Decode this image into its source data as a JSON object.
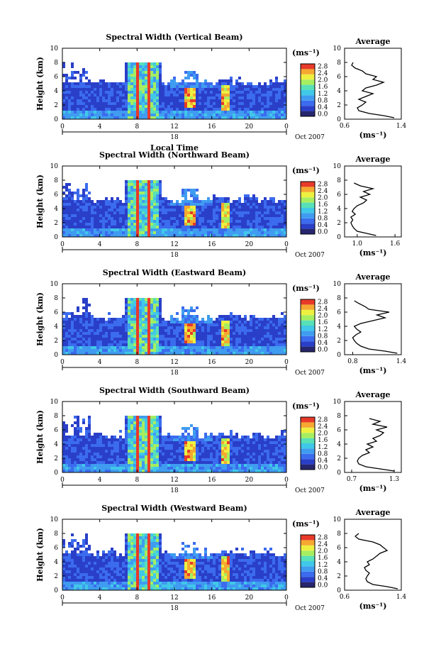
{
  "chart_data": [
    {
      "type": "heatmap",
      "title": "Spectral Width (Vertical Beam)",
      "ylabel": "Height (km)",
      "xlabel": "Local Time",
      "x_ticks": [
        "0",
        "4",
        "8",
        "12",
        "16",
        "20",
        "0"
      ],
      "day_label": "18",
      "date_label": "Oct 2007",
      "xlim": [
        0,
        24
      ],
      "ylim": [
        0,
        10
      ],
      "y_ticks": [
        "0",
        "2",
        "4",
        "6",
        "8",
        "10"
      ],
      "colorbar": {
        "unit": "(ms⁻¹)",
        "ticks": [
          "0.0",
          "0.4",
          "0.8",
          "1.2",
          "1.6",
          "2.0",
          "2.4",
          "2.8"
        ],
        "range": [
          0.0,
          2.8
        ]
      },
      "average": {
        "title": "Average",
        "xlabel": "(ms⁻¹)",
        "x_ticks": [
          "0.6",
          "1.4"
        ],
        "xlim": [
          0.6,
          1.4
        ],
        "heights": [
          0.2,
          0.5,
          0.8,
          1.2,
          1.6,
          2.0,
          2.4,
          2.8,
          3.2,
          3.6,
          4.0,
          4.4,
          4.8,
          5.2,
          5.6,
          6.0,
          6.4,
          6.8,
          7.2,
          7.6,
          8.0
        ],
        "values": [
          1.3,
          1.15,
          0.95,
          0.8,
          0.78,
          0.85,
          0.9,
          0.8,
          0.9,
          1.0,
          0.85,
          0.9,
          1.05,
          1.15,
          1.0,
          1.05,
          0.9,
          0.85,
          0.75,
          0.7,
          0.72
        ]
      }
    },
    {
      "type": "heatmap",
      "title": "Spectral Width (Northward Beam)",
      "ylabel": "Height (km)",
      "x_ticks": [
        "0",
        "4",
        "8",
        "12",
        "16",
        "20",
        "0"
      ],
      "day_label": "18",
      "date_label": "Oct 2007",
      "xlim": [
        0,
        24
      ],
      "ylim": [
        0,
        10
      ],
      "y_ticks": [
        "0",
        "2",
        "4",
        "6",
        "8",
        "10"
      ],
      "colorbar": {
        "unit": "(ms⁻¹)",
        "ticks": [
          "0.0",
          "0.4",
          "0.8",
          "1.2",
          "1.6",
          "2.0",
          "2.4",
          "2.8"
        ],
        "range": [
          0.0,
          2.8
        ]
      },
      "average": {
        "title": "Average",
        "xlabel": "(ms⁻¹)",
        "x_ticks": [
          "1.0",
          "1.6"
        ],
        "xlim": [
          0.8,
          1.7
        ],
        "heights": [
          0.2,
          0.5,
          0.8,
          1.2,
          1.6,
          2.0,
          2.4,
          2.8,
          3.2,
          3.6,
          4.0,
          4.4,
          4.8,
          5.2,
          5.6,
          6.0,
          6.4,
          6.8,
          7.2,
          7.6
        ],
        "values": [
          1.3,
          1.15,
          1.0,
          0.95,
          0.92,
          0.9,
          0.93,
          0.9,
          0.97,
          0.92,
          0.95,
          1.0,
          1.1,
          1.15,
          1.05,
          1.2,
          1.1,
          1.25,
          1.05,
          0.95
        ]
      }
    },
    {
      "type": "heatmap",
      "title": "Spectral Width (Eastward Beam)",
      "ylabel": "Height (km)",
      "x_ticks": [
        "0",
        "4",
        "8",
        "12",
        "16",
        "20",
        "0"
      ],
      "day_label": "18",
      "date_label": "Oct 2007",
      "xlim": [
        0,
        24
      ],
      "ylim": [
        0,
        10
      ],
      "y_ticks": [
        "0",
        "2",
        "4",
        "6",
        "8",
        "10"
      ],
      "colorbar": {
        "unit": "(ms⁻¹)",
        "ticks": [
          "0.0",
          "0.4",
          "0.8",
          "1.2",
          "1.6",
          "2.0",
          "2.4",
          "2.8"
        ],
        "range": [
          0.0,
          2.8
        ]
      },
      "average": {
        "title": "Average",
        "xlabel": "(ms⁻¹)",
        "x_ticks": [
          "0.8",
          "1.4"
        ],
        "xlim": [
          0.7,
          1.4
        ],
        "heights": [
          0.2,
          0.5,
          0.8,
          1.2,
          1.6,
          2.0,
          2.4,
          2.8,
          3.2,
          3.6,
          4.0,
          4.4,
          4.8,
          5.2,
          5.6,
          6.0,
          6.4,
          6.8,
          7.2,
          7.6
        ],
        "values": [
          1.35,
          1.2,
          1.0,
          0.9,
          0.85,
          0.82,
          0.8,
          0.84,
          0.9,
          0.85,
          0.82,
          0.9,
          1.05,
          1.2,
          1.1,
          1.25,
          1.0,
          0.95,
          0.88,
          0.82
        ]
      }
    },
    {
      "type": "heatmap",
      "title": "Spectral Width (Southward Beam)",
      "ylabel": "Height (km)",
      "x_ticks": [
        "0",
        "4",
        "8",
        "12",
        "16",
        "20",
        "0"
      ],
      "day_label": "18",
      "date_label": "Oct 2007",
      "xlim": [
        0,
        24
      ],
      "ylim": [
        0,
        10
      ],
      "y_ticks": [
        "0",
        "2",
        "4",
        "6",
        "8",
        "10"
      ],
      "colorbar": {
        "unit": "(ms⁻¹)",
        "ticks": [
          "0.0",
          "0.4",
          "0.8",
          "1.2",
          "1.6",
          "2.0",
          "2.4",
          "2.8"
        ],
        "range": [
          0.0,
          2.8
        ]
      },
      "average": {
        "title": "Average",
        "xlabel": "(ms⁻¹)",
        "x_ticks": [
          "0.7",
          "1.3"
        ],
        "xlim": [
          0.6,
          1.4
        ],
        "heights": [
          0.2,
          0.5,
          0.8,
          1.2,
          1.6,
          2.0,
          2.4,
          2.8,
          3.2,
          3.6,
          4.0,
          4.4,
          4.8,
          5.2,
          5.6,
          6.0,
          6.4,
          6.8,
          7.2,
          7.6
        ],
        "values": [
          1.3,
          1.1,
          0.9,
          0.8,
          0.78,
          0.8,
          0.85,
          0.95,
          0.9,
          1.0,
          0.92,
          1.05,
          1.0,
          1.1,
          1.15,
          1.05,
          1.2,
          1.0,
          1.1,
          0.95
        ]
      }
    },
    {
      "type": "heatmap",
      "title": "Spectral Width (Westward Beam)",
      "ylabel": "Height (km)",
      "x_ticks": [
        "0",
        "4",
        "8",
        "12",
        "16",
        "20",
        "0"
      ],
      "day_label": "18",
      "date_label": "Oct 2007",
      "xlim": [
        0,
        24
      ],
      "ylim": [
        0,
        10
      ],
      "y_ticks": [
        "0",
        "2",
        "4",
        "6",
        "8",
        "10"
      ],
      "colorbar": {
        "unit": "(ms⁻¹)",
        "ticks": [
          "0.0",
          "0.4",
          "0.8",
          "1.2",
          "1.6",
          "2.0",
          "2.4",
          "2.8"
        ],
        "range": [
          0.0,
          2.8
        ]
      },
      "average": {
        "title": "Average",
        "xlabel": "(ms⁻¹)",
        "x_ticks": [
          "0.6",
          "1.4"
        ],
        "xlim": [
          0.6,
          1.4
        ],
        "heights": [
          0.2,
          0.5,
          0.8,
          1.2,
          1.6,
          2.0,
          2.4,
          2.8,
          3.2,
          3.6,
          4.0,
          4.4,
          4.8,
          5.2,
          5.6,
          6.0,
          6.4,
          6.8,
          7.2,
          7.6,
          8.0
        ],
        "values": [
          1.35,
          1.2,
          1.0,
          0.92,
          0.9,
          0.92,
          0.95,
          0.9,
          0.88,
          0.95,
          0.92,
          1.0,
          1.05,
          1.1,
          1.2,
          1.15,
          1.1,
          1.0,
          0.8,
          0.75,
          0.8
        ]
      }
    }
  ]
}
